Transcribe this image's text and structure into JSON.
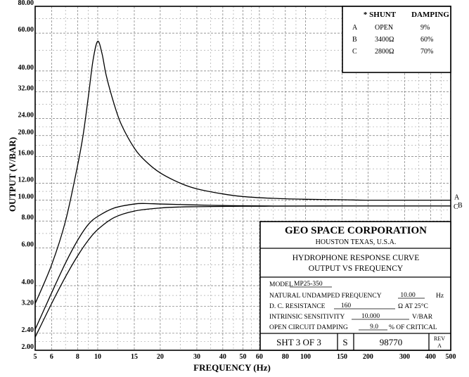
{
  "chart_data": {
    "type": "line",
    "title": "",
    "xlabel": "FREQUENCY (Hz)",
    "ylabel": "OUTPUT (V/BAR)",
    "x_scale": "log",
    "y_scale": "log",
    "xlim": [
      5,
      500
    ],
    "ylim": [
      2.0,
      80.0
    ],
    "grid": true,
    "x_ticks": [
      5,
      6,
      8,
      10,
      15,
      20,
      30,
      40,
      50,
      60,
      80,
      100,
      150,
      200,
      300,
      400,
      500
    ],
    "x_tick_labels": [
      "5",
      "6",
      "8",
      "10",
      "15",
      "20",
      "30",
      "40",
      "50",
      "60",
      "80",
      "100",
      "150",
      "200",
      "300",
      "400",
      "500"
    ],
    "y_ticks": [
      2.0,
      2.4,
      3.2,
      4.0,
      6.0,
      8.0,
      10.0,
      12.0,
      16.0,
      20.0,
      24.0,
      32.0,
      40.0,
      60.0,
      80.0
    ],
    "y_tick_labels": [
      "2.00",
      "2.40",
      "3.20",
      "4.00",
      "6.00",
      "8.00",
      "10.00",
      "12.00",
      "16.00",
      "20.00",
      "24.00",
      "32.00",
      "40.00",
      "60.00",
      "80.00"
    ],
    "series": [
      {
        "name": "A",
        "x": [
          5,
          6,
          7,
          8,
          8.5,
          9,
          9.5,
          10,
          10.5,
          11,
          12,
          13,
          15,
          17,
          20,
          25,
          30,
          40,
          50,
          70,
          100,
          150,
          200,
          300,
          500
        ],
        "y": [
          3.3,
          5.0,
          8.0,
          14.5,
          20.0,
          30.0,
          45.0,
          55.0,
          48.0,
          38.0,
          28.0,
          22.5,
          17.5,
          15.2,
          13.4,
          12.0,
          11.3,
          10.7,
          10.4,
          10.2,
          10.1,
          10.05,
          10.0,
          10.0,
          10.0
        ]
      },
      {
        "name": "B",
        "x": [
          5,
          6,
          7,
          8,
          9,
          10,
          12,
          15,
          17,
          20,
          25,
          30,
          40,
          50,
          70,
          100,
          150,
          200,
          300,
          500
        ],
        "y": [
          2.5,
          3.7,
          5.1,
          6.5,
          7.7,
          8.4,
          9.2,
          9.6,
          9.65,
          9.6,
          9.55,
          9.5,
          9.45,
          9.42,
          9.4,
          9.4,
          9.4,
          9.4,
          9.4,
          9.4
        ]
      },
      {
        "name": "C",
        "x": [
          5,
          6,
          7,
          8,
          9,
          10,
          12,
          15,
          20,
          25,
          30,
          40,
          50,
          70,
          100,
          150,
          200,
          300,
          500
        ],
        "y": [
          2.3,
          3.3,
          4.4,
          5.5,
          6.5,
          7.3,
          8.3,
          8.9,
          9.2,
          9.3,
          9.33,
          9.36,
          9.37,
          9.38,
          9.39,
          9.4,
          9.4,
          9.4,
          9.4
        ]
      }
    ],
    "legend": {
      "placement": "top-right",
      "headers": [
        "* SHUNT",
        "DAMPING"
      ],
      "rows": [
        {
          "key": "A",
          "shunt": "OPEN",
          "damping": "9%"
        },
        {
          "key": "B",
          "shunt": "3400Ω",
          "damping": "60%"
        },
        {
          "key": "C",
          "shunt": "2800Ω",
          "damping": "70%"
        }
      ]
    },
    "end_labels": {
      "A": "A",
      "B": "B",
      "C": "C"
    }
  },
  "title_block": {
    "company": "GEO SPACE CORPORATION",
    "location": "HOUSTON TEXAS, U.S.A.",
    "title_line1": "HYDROPHONE RESPONSE  CURVE",
    "title_line2": "OUTPUT VS FREQUENCY",
    "fields": [
      {
        "label": "MODEL",
        "value": "MP25-350",
        "suffix": ""
      },
      {
        "label": "NATURAL  UNDAMPED  FREQUENCY",
        "value": "10.00",
        "suffix": "Hz"
      },
      {
        "label": "D. C.  RESISTANCE",
        "value": "160",
        "suffix": "Ω  AT 25°C"
      },
      {
        "label": "INTRINSIC SENSITIVITY",
        "value": "10.000",
        "suffix": "V/BAR"
      },
      {
        "label": "OPEN CIRCUIT DAMPING",
        "value": "9.0",
        "suffix": "%  OF CRITICAL"
      }
    ],
    "sheet": "SHT  3 OF  3",
    "size": "S",
    "drawing_number": "98770",
    "rev_label": "REV",
    "rev_value": "A"
  }
}
